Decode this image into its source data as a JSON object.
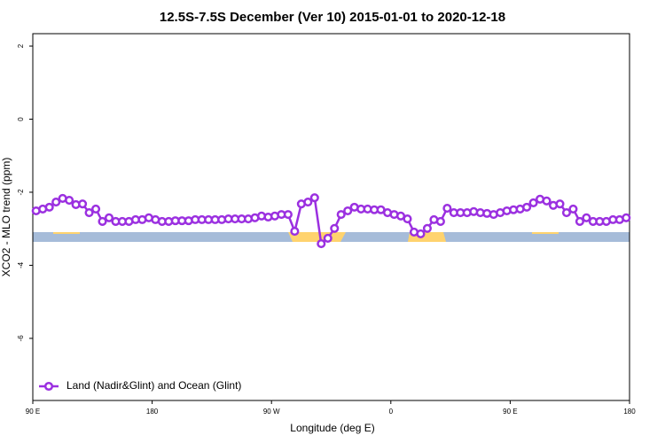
{
  "chart_data": {
    "type": "line",
    "title": "12.5S-7.5S December (Ver 10)   2015-01-01 to 2020-12-18",
    "x_label": "Longitude (deg E)",
    "y_label": "XCO2 - MLO trend (ppm)",
    "xlim": [
      90,
      540
    ],
    "ylim": [
      -7.7,
      2.34
    ],
    "xticks": [
      {
        "value": 90,
        "label": "90 E"
      },
      180,
      {
        "value": 270,
        "label": "90 W"
      },
      {
        "value": 360,
        "label": "0"
      },
      {
        "value": 450,
        "label": "90 E"
      },
      {
        "value": 540,
        "label": "180"
      }
    ],
    "yticks": [
      2,
      0,
      -2,
      -4,
      -6
    ],
    "legend": "bottom-left",
    "x": [
      92.5,
      97.5,
      102.5,
      107.5,
      112.5,
      117.5,
      122.5,
      127.5,
      132.5,
      137.5,
      142.5,
      147.5,
      152.5,
      157.5,
      162.5,
      167.5,
      172.5,
      177.5,
      182.5,
      187.5,
      192.5,
      197.5,
      202.5,
      207.5,
      212.5,
      217.5,
      222.5,
      227.5,
      232.5,
      237.5,
      242.5,
      247.5,
      252.5,
      257.5,
      262.5,
      267.5,
      272.5,
      277.5,
      282.5,
      287.5,
      292.5,
      297.5,
      302.5,
      307.5,
      312.5,
      317.5,
      322.5,
      327.5,
      332.5,
      337.5,
      342.5,
      347.5,
      352.5,
      357.5,
      362.5,
      367.5,
      372.5,
      377.5,
      382.5,
      387.5,
      392.5,
      397.5,
      402.5,
      407.5,
      412.5,
      417.5,
      422.5,
      427.5,
      432.5,
      437.5,
      442.5,
      447.5,
      452.5,
      457.5,
      462.5,
      467.5,
      472.5,
      477.5,
      482.5,
      487.5,
      492.5,
      497.5,
      502.5,
      507.5,
      512.5,
      517.5,
      522.5,
      527.5,
      532.5,
      537.5
    ],
    "series": [
      {
        "name": "Land (Nadir&Glint) and Ocean (Glint)",
        "color": "#9b30e0",
        "values": [
          -2.51,
          -2.46,
          -2.41,
          -2.27,
          -2.17,
          -2.22,
          -2.34,
          -2.32,
          -2.56,
          -2.46,
          -2.8,
          -2.7,
          -2.8,
          -2.8,
          -2.8,
          -2.75,
          -2.75,
          -2.7,
          -2.75,
          -2.8,
          -2.8,
          -2.78,
          -2.78,
          -2.78,
          -2.75,
          -2.75,
          -2.75,
          -2.75,
          -2.75,
          -2.73,
          -2.73,
          -2.73,
          -2.73,
          -2.7,
          -2.65,
          -2.68,
          -2.65,
          -2.61,
          -2.61,
          -3.07,
          -2.32,
          -2.27,
          -2.15,
          -3.41,
          -3.26,
          -2.99,
          -2.61,
          -2.51,
          -2.41,
          -2.46,
          -2.46,
          -2.48,
          -2.48,
          -2.56,
          -2.61,
          -2.65,
          -2.73,
          -3.09,
          -3.14,
          -2.99,
          -2.75,
          -2.8,
          -2.44,
          -2.56,
          -2.56,
          -2.56,
          -2.53,
          -2.56,
          -2.58,
          -2.61,
          -2.56,
          -2.51,
          -2.48,
          -2.46,
          -2.41,
          -2.29,
          -2.19,
          -2.24,
          -2.36,
          -2.32,
          -2.56,
          -2.46,
          -2.8,
          -2.7,
          -2.8,
          -2.8,
          -2.8,
          -2.75,
          -2.75,
          -2.7
        ]
      }
    ]
  }
}
